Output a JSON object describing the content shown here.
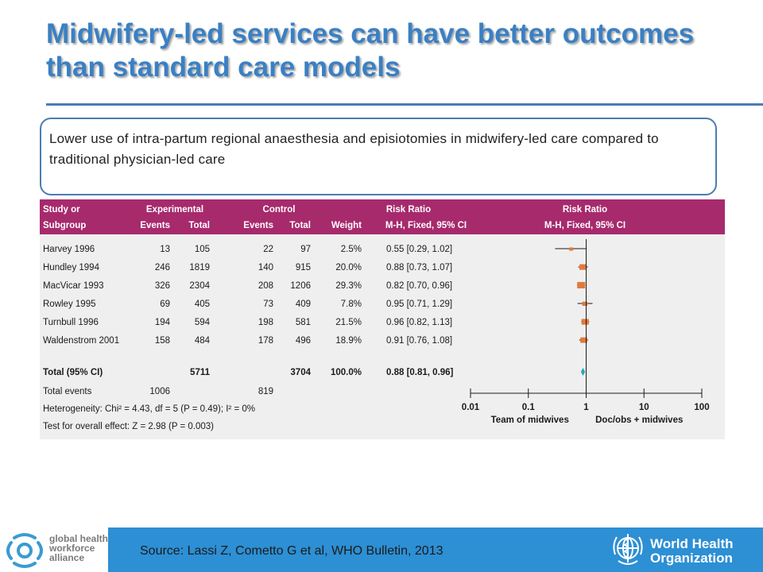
{
  "slide": {
    "title": "Midwifery-led services can have better outcomes than standard care models",
    "callout": "Lower use of intra-partum regional anaesthesia and episiotomies in midwifery-led care compared to traditional physician-led care",
    "source": "Source: Lassi Z, Cometto G et al, WHO Bulletin, 2013",
    "logo_left_lines": [
      "global health",
      "workforce",
      "alliance"
    ],
    "logo_right_lines": [
      "World Health",
      "Organization"
    ],
    "colors": {
      "title": "#3a80c4",
      "header_bar": "#a72a6d",
      "footer_bar": "#2d8fd4",
      "study_marker": "#e07a3a",
      "total_marker": "#2ba7b5"
    }
  },
  "chart_data": {
    "type": "forest",
    "headers": {
      "row1": [
        "Study or",
        "Experimental",
        "Control",
        "Risk Ratio",
        "Risk Ratio"
      ],
      "row2": [
        "Subgroup",
        "Events",
        "Total",
        "Events",
        "Total",
        "Weight",
        "M-H, Fixed, 95% CI",
        "M-H, Fixed, 95% CI"
      ]
    },
    "studies": [
      {
        "name": "Harvey 1996",
        "exp_events": "13",
        "exp_total": "105",
        "ctl_events": "22",
        "ctl_total": "97",
        "weight": "2.5%",
        "ci_text": "0.55 [0.29, 1.02]",
        "rr": 0.55,
        "lo": 0.29,
        "hi": 1.02
      },
      {
        "name": "Hundley 1994",
        "exp_events": "246",
        "exp_total": "1819",
        "ctl_events": "140",
        "ctl_total": "915",
        "weight": "20.0%",
        "ci_text": "0.88 [0.73, 1.07]",
        "rr": 0.88,
        "lo": 0.73,
        "hi": 1.07
      },
      {
        "name": "MacVicar 1993",
        "exp_events": "326",
        "exp_total": "2304",
        "ctl_events": "208",
        "ctl_total": "1206",
        "weight": "29.3%",
        "ci_text": "0.82 [0.70, 0.96]",
        "rr": 0.82,
        "lo": 0.7,
        "hi": 0.96
      },
      {
        "name": "Rowley 1995",
        "exp_events": "69",
        "exp_total": "405",
        "ctl_events": "73",
        "ctl_total": "409",
        "weight": "7.8%",
        "ci_text": "0.95 [0.71, 1.29]",
        "rr": 0.95,
        "lo": 0.71,
        "hi": 1.29
      },
      {
        "name": "Turnbull 1996",
        "exp_events": "194",
        "exp_total": "594",
        "ctl_events": "198",
        "ctl_total": "581",
        "weight": "21.5%",
        "ci_text": "0.96 [0.82, 1.13]",
        "rr": 0.96,
        "lo": 0.82,
        "hi": 1.13
      },
      {
        "name": "Waldenstrom 2001",
        "exp_events": "158",
        "exp_total": "484",
        "ctl_events": "178",
        "ctl_total": "496",
        "weight": "18.9%",
        "ci_text": "0.91 [0.76, 1.08]",
        "rr": 0.91,
        "lo": 0.76,
        "hi": 1.08
      }
    ],
    "total": {
      "name": "Total (95% CI)",
      "exp_total": "5711",
      "ctl_total": "3704",
      "weight": "100.0%",
      "ci_text": "0.88 [0.81, 0.96]",
      "rr": 0.88,
      "lo": 0.81,
      "hi": 0.96
    },
    "total_events": {
      "label": "Total events",
      "exp": "1006",
      "ctl": "819"
    },
    "heterogeneity": "Heterogeneity: Chi² = 4.43, df = 5 (P = 0.49);  I² = 0%",
    "overall_effect": "Test for overall effect: Z = 2.98 (P = 0.003)",
    "axis": {
      "scale": "log",
      "range": [
        0.01,
        100
      ],
      "ticks": [
        0.01,
        0.1,
        1,
        10,
        100
      ],
      "tick_labels": [
        "0.01",
        "0.1",
        "1",
        "10",
        "100"
      ],
      "null_line": 1,
      "favours_left": "Team of midwives",
      "favours_right": "Doc/obs + midwives"
    }
  }
}
